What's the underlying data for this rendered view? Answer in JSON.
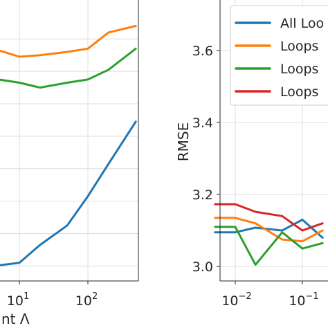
{
  "chart_data": [
    {
      "type": "line",
      "xscale": "log",
      "xlabel": "nt Λ",
      "x_tick_labels": [
        {
          "base": "10",
          "exp": "1",
          "value": 10
        },
        {
          "base": "10",
          "exp": "2",
          "value": 100
        }
      ],
      "colors": [
        "#1f77b4",
        "#ff7f0e",
        "#2ca02c"
      ],
      "series": [
        {
          "color": "#1f77b4",
          "x": [
            5,
            10,
            20,
            50,
            100,
            200,
            500
          ],
          "y": [
            3.002,
            3.01,
            3.065,
            3.125,
            3.215,
            3.315,
            3.445
          ]
        },
        {
          "color": "#ff7f0e",
          "x": [
            5,
            10,
            20,
            50,
            100,
            200,
            500
          ],
          "y": [
            3.665,
            3.645,
            3.65,
            3.66,
            3.67,
            3.72,
            3.74
          ]
        },
        {
          "color": "#2ca02c",
          "x": [
            5,
            10,
            20,
            50,
            100,
            200,
            500
          ],
          "y": [
            3.575,
            3.565,
            3.55,
            3.565,
            3.575,
            3.605,
            3.67
          ]
        }
      ]
    },
    {
      "type": "line",
      "xscale": "log",
      "ylabel": "RMSE",
      "ylim": [
        2.96,
        3.74
      ],
      "y_ticks": [
        3.0,
        3.2,
        3.4,
        3.6
      ],
      "y_tick_labels": [
        "3.0",
        "3.2",
        "3.4",
        "3.6"
      ],
      "x_tick_labels": [
        {
          "base": "10",
          "exp": "−2",
          "value": 0.01
        },
        {
          "base": "10",
          "exp": "−1",
          "value": 0.1
        }
      ],
      "legend": {
        "placement": "top-right",
        "entries": [
          "All Loo",
          "Loops",
          "Loops",
          "Loops"
        ],
        "colors": [
          "#1f77b4",
          "#ff7f0e",
          "#2ca02c",
          "#d62728"
        ]
      },
      "series": [
        {
          "color": "#1f77b4",
          "x": [
            0.005,
            0.01,
            0.02,
            0.05,
            0.1,
            0.2
          ],
          "y": [
            3.095,
            3.095,
            3.108,
            3.1,
            3.13,
            3.08
          ]
        },
        {
          "color": "#ff7f0e",
          "x": [
            0.005,
            0.01,
            0.02,
            0.05,
            0.1,
            0.2
          ],
          "y": [
            3.135,
            3.135,
            3.12,
            3.075,
            3.07,
            3.1
          ]
        },
        {
          "color": "#2ca02c",
          "x": [
            0.005,
            0.01,
            0.02,
            0.05,
            0.1,
            0.2
          ],
          "y": [
            3.11,
            3.11,
            3.005,
            3.095,
            3.05,
            3.065
          ]
        },
        {
          "color": "#d62728",
          "x": [
            0.005,
            0.01,
            0.02,
            0.05,
            0.1,
            0.2
          ],
          "y": [
            3.173,
            3.173,
            3.152,
            3.14,
            3.1,
            3.12
          ]
        }
      ]
    }
  ]
}
